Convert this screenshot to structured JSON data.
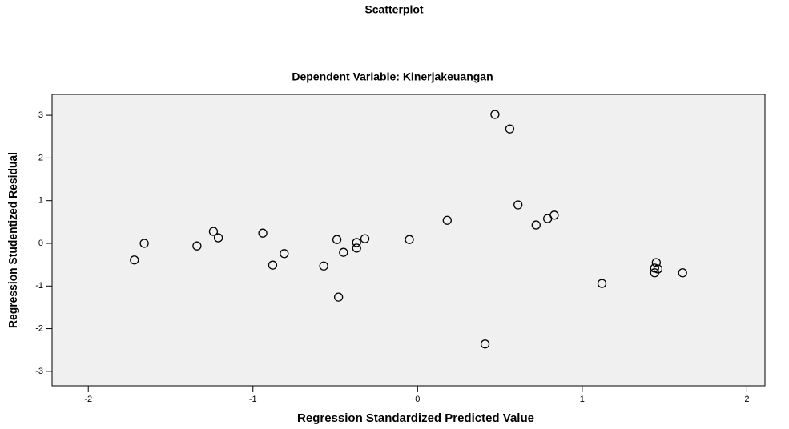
{
  "chart_data": {
    "type": "scatter",
    "title": "Scatterplot",
    "subtitle": "Dependent Variable: Kinerjakeuangan",
    "x_label": "Regression Standardized Predicted Value",
    "y_label": "Regression Studentized Residual",
    "x": [
      -1.72,
      -1.66,
      -1.34,
      -1.24,
      -1.21,
      -0.94,
      -0.88,
      -0.81,
      -0.57,
      -0.49,
      -0.48,
      -0.45,
      -0.37,
      -0.37,
      -0.32,
      -0.05,
      0.18,
      0.41,
      0.47,
      0.56,
      0.61,
      0.72,
      0.79,
      0.83,
      1.12,
      1.45,
      1.44,
      1.46,
      1.44,
      1.61
    ],
    "values": [
      -0.39,
      0.0,
      -0.06,
      0.28,
      0.13,
      0.24,
      -0.51,
      -0.24,
      -0.53,
      0.09,
      -1.26,
      -0.21,
      0.02,
      -0.11,
      0.11,
      0.09,
      0.54,
      -2.36,
      3.02,
      2.68,
      0.9,
      0.43,
      0.58,
      0.66,
      -0.94,
      -0.45,
      -0.58,
      -0.6,
      -0.69,
      -0.69
    ],
    "xlim": [
      -2.22,
      2.11
    ],
    "xticks": [
      -2,
      -1,
      0,
      1,
      2
    ],
    "ylim": [
      -3.34,
      3.49
    ],
    "yticks": [
      -3,
      -2,
      -1,
      0,
      1,
      2,
      3
    ],
    "plot_background": "#f0f0f0",
    "marker_color": "#000000"
  }
}
